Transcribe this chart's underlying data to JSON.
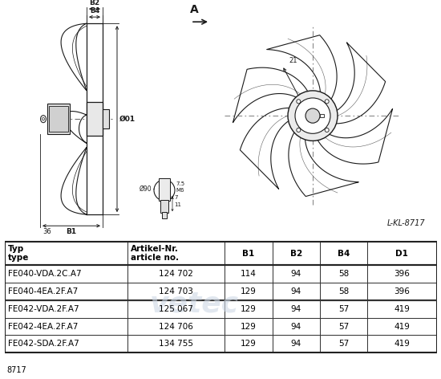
{
  "drawing_label": "L-KL-8717",
  "drawing_code": "8717",
  "table_headers_line1": [
    "Typ",
    "Artikel-Nr.",
    "B1",
    "B2",
    "B4",
    "D1"
  ],
  "table_headers_line2": [
    "type",
    "article no.",
    "",
    "",
    "",
    ""
  ],
  "table_rows": [
    [
      "FE040-VDA.2C.A7",
      "124 702",
      "114",
      "94",
      "58",
      "396"
    ],
    [
      "FE040-4EA.2F.A7",
      "124 703",
      "129",
      "94",
      "58",
      "396"
    ],
    [
      "FE042-VDA.2F.A7",
      "125 067",
      "129",
      "94",
      "57",
      "419"
    ],
    [
      "FE042-4EA.2F.A7",
      "124 706",
      "129",
      "94",
      "57",
      "419"
    ],
    [
      "FE042-SDA.2F.A7",
      "134 755",
      "129",
      "94",
      "57",
      "419"
    ]
  ],
  "bg_color": "#ffffff",
  "lc": "#1a1a1a",
  "dim_arrow_label": "A",
  "hub_detail_labels": [
    "Ø90",
    "7.5",
    "M6",
    "7",
    "11"
  ],
  "dim_labels": [
    "B2",
    "B4",
    "Ø01",
    "B1",
    "36"
  ]
}
